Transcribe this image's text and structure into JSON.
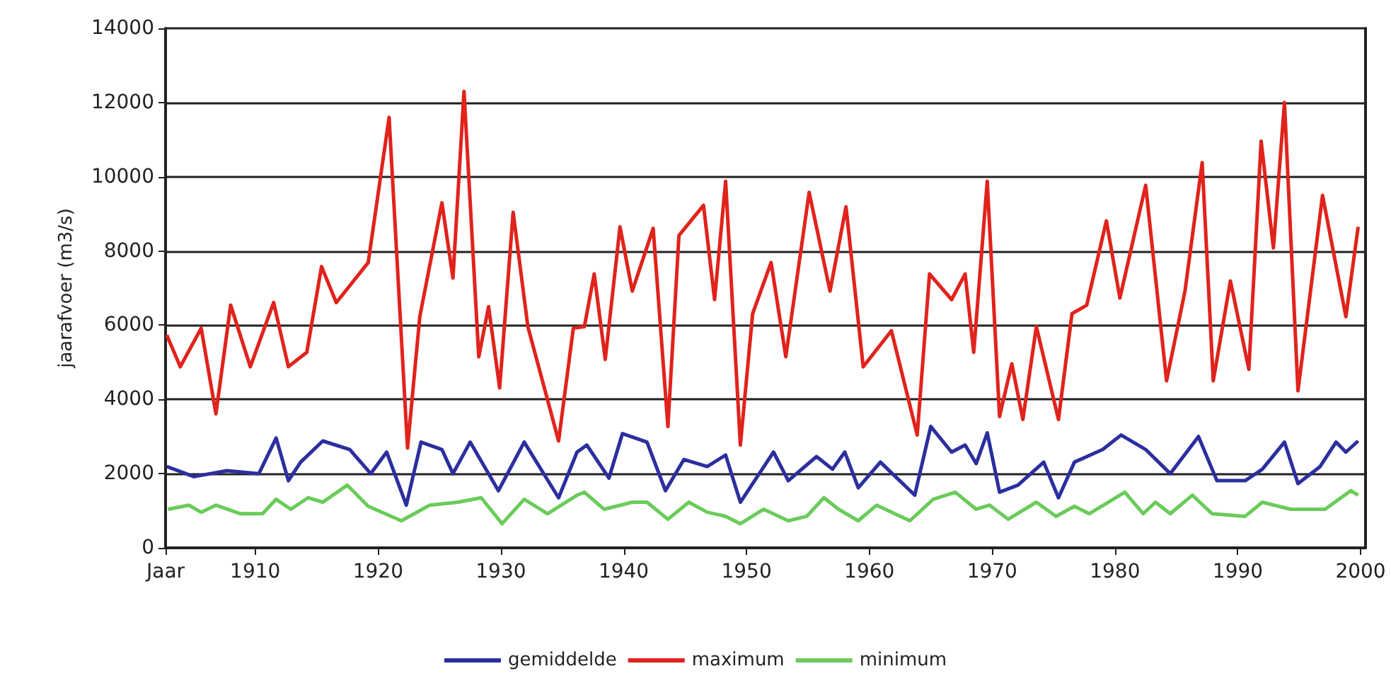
{
  "chart_data": {
    "type": "line",
    "ylabel": "jaarafvoer (m3/s)",
    "xlim": [
      1902.7,
      2000.4
    ],
    "xticks": [
      {
        "value": 1902.7,
        "label": "Jaar"
      },
      1910,
      1920,
      1930,
      1940,
      1950,
      1960,
      1970,
      1980,
      1990,
      2000
    ],
    "ylim": [
      0,
      14000
    ],
    "yticks": [
      0,
      2000,
      4000,
      6000,
      8000,
      10000,
      12000,
      14000
    ],
    "grid": "y",
    "legend": "bottom",
    "marker": "none",
    "line_style": "solid",
    "series": [
      {
        "name": "gemiddelde",
        "color": "#2b2f9e",
        "x": [
          1902.8,
          1905,
          1907.7,
          1910.3,
          1911.7,
          1912.7,
          1913.7,
          1915.5,
          1917.7,
          1919.4,
          1920.7,
          1922.3,
          1923.5,
          1925.2,
          1926.1,
          1927.5,
          1929.8,
          1931.9,
          1934.7,
          1936.2,
          1937,
          1938.8,
          1939.9,
          1941.9,
          1943.4,
          1944.9,
          1946.8,
          1948.3,
          1949.5,
          1952.2,
          1953.4,
          1955.7,
          1957,
          1958,
          1959.1,
          1960.9,
          1963.7,
          1965,
          1966.7,
          1967.8,
          1968.7,
          1969.6,
          1970.6,
          1972.1,
          1974.2,
          1975.4,
          1976.7,
          1979,
          1980.5,
          1982.5,
          1984.5,
          1986.8,
          1988.3,
          1990.6,
          1992,
          1993.8,
          1994.9,
          1996.7,
          1998,
          1998.8,
          1999.8
        ],
        "values": [
          2190,
          1920,
          2080,
          2000,
          2960,
          1810,
          2310,
          2880,
          2650,
          2000,
          2580,
          1150,
          2850,
          2650,
          2000,
          2850,
          1540,
          2850,
          1350,
          2580,
          2770,
          1880,
          3080,
          2850,
          1540,
          2380,
          2190,
          2500,
          1230,
          2580,
          1810,
          2460,
          2120,
          2580,
          1620,
          2310,
          1420,
          3270,
          2580,
          2770,
          2270,
          3100,
          1500,
          1690,
          2310,
          1350,
          2310,
          2650,
          3040,
          2650,
          2000,
          3000,
          1810,
          1810,
          2120,
          2850,
          1730,
          2190,
          2850,
          2580,
          2880
        ]
      },
      {
        "name": "maximum",
        "color": "#e0231c",
        "x": [
          1902.8,
          1903.9,
          1905.6,
          1906.8,
          1908,
          1909.6,
          1911.5,
          1912.7,
          1914.2,
          1915.4,
          1916.6,
          1919.2,
          1920.9,
          1922.4,
          1923.4,
          1925.2,
          1926.1,
          1927,
          1928.2,
          1929,
          1929.9,
          1931,
          1932.2,
          1934.7,
          1935.9,
          1936.8,
          1937.6,
          1938.5,
          1939.7,
          1940.7,
          1942.4,
          1943.6,
          1944.5,
          1946.5,
          1947.4,
          1948.3,
          1949.5,
          1950.5,
          1952,
          1953.2,
          1955.1,
          1956.8,
          1958.1,
          1959.5,
          1961.8,
          1963.9,
          1964.9,
          1966.7,
          1967.8,
          1968.5,
          1969.6,
          1970.6,
          1971.6,
          1972.5,
          1973.6,
          1975.4,
          1976.5,
          1977.7,
          1979.3,
          1980.4,
          1982.5,
          1984.2,
          1985.7,
          1987.1,
          1988,
          1989.4,
          1990.9,
          1991.9,
          1992.9,
          1993.8,
          1994.9,
          1996.9,
          1998.8,
          1999.8
        ],
        "values": [
          5730,
          4880,
          5920,
          3610,
          6540,
          4880,
          6610,
          4880,
          5270,
          7580,
          6610,
          7690,
          11600,
          2690,
          6230,
          9300,
          7270,
          12300,
          5150,
          6500,
          4310,
          9040,
          5960,
          2880,
          5920,
          5960,
          7380,
          5080,
          8650,
          6920,
          8610,
          3270,
          8420,
          9230,
          6690,
          9880,
          2770,
          6310,
          7690,
          5150,
          9580,
          6920,
          9190,
          4880,
          5850,
          3040,
          7380,
          6690,
          7380,
          5270,
          9880,
          3540,
          4960,
          3460,
          5960,
          3460,
          6310,
          6540,
          8810,
          6730,
          9770,
          4500,
          6920,
          10380,
          4500,
          7190,
          4810,
          10960,
          8080,
          12000,
          4230,
          9500,
          6230,
          8650
        ]
      },
      {
        "name": "minimum",
        "color": "#6acb5a",
        "x": [
          1902.9,
          1904.6,
          1905.6,
          1906.8,
          1908.8,
          1910.6,
          1911.7,
          1912.9,
          1914.3,
          1915.5,
          1917.5,
          1919.2,
          1921.9,
          1924.2,
          1926.5,
          1928.4,
          1930.1,
          1931.9,
          1933.8,
          1936.2,
          1936.8,
          1938.4,
          1940.7,
          1941.9,
          1943.6,
          1945.3,
          1946.8,
          1948.3,
          1949.5,
          1951.4,
          1953.4,
          1954.9,
          1956.3,
          1957.5,
          1959.1,
          1960.6,
          1963.3,
          1965.2,
          1967,
          1968.7,
          1969.8,
          1971.3,
          1973.6,
          1975.2,
          1976.7,
          1977.9,
          1980.8,
          1982.3,
          1983.3,
          1984.5,
          1986.3,
          1987.9,
          1990.6,
          1992,
          1994.3,
          1997.1,
          1999.2,
          1999.8
        ],
        "values": [
          1040,
          1150,
          960,
          1150,
          920,
          920,
          1310,
          1040,
          1350,
          1230,
          1690,
          1120,
          730,
          1150,
          1230,
          1350,
          650,
          1310,
          920,
          1420,
          1500,
          1040,
          1230,
          1230,
          770,
          1230,
          960,
          850,
          650,
          1040,
          730,
          850,
          1350,
          1040,
          730,
          1150,
          730,
          1310,
          1500,
          1040,
          1150,
          770,
          1230,
          850,
          1120,
          920,
          1500,
          920,
          1230,
          920,
          1420,
          920,
          850,
          1230,
          1040,
          1040,
          1540,
          1420
        ]
      }
    ]
  }
}
